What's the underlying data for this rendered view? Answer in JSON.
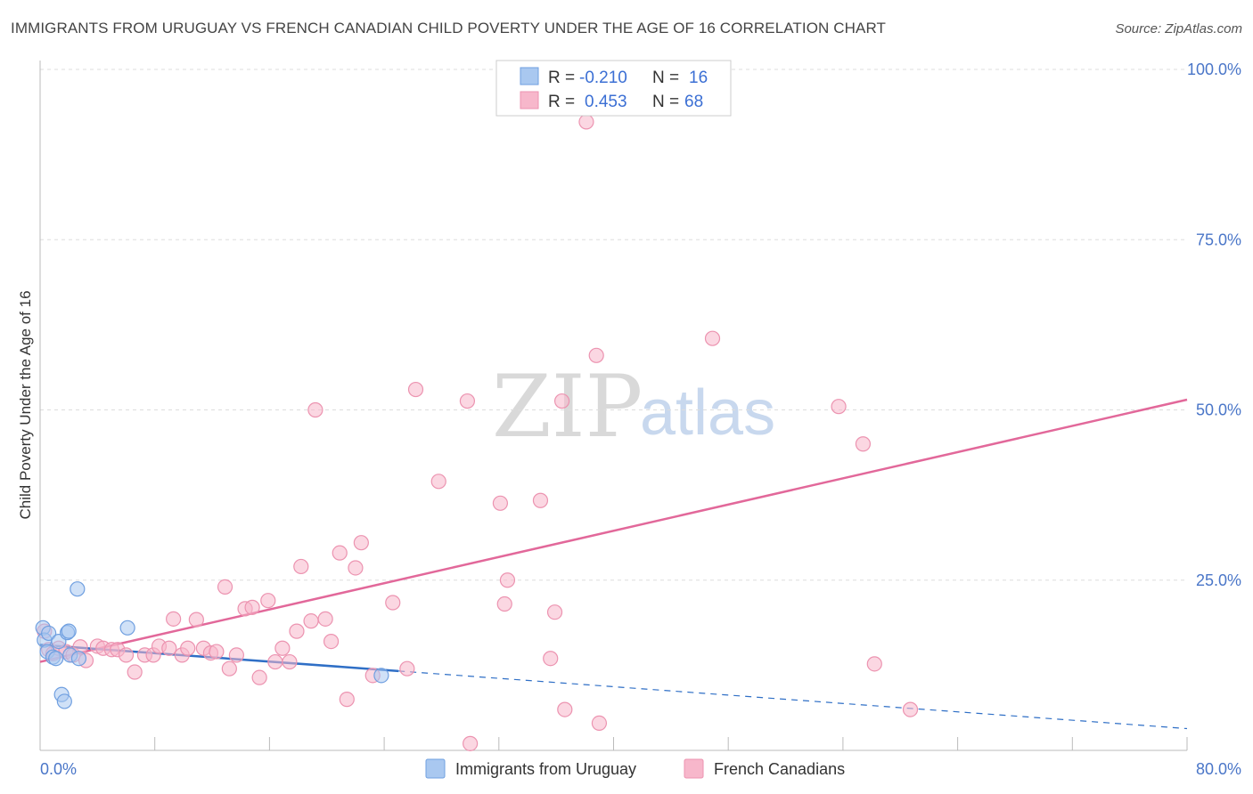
{
  "title": "IMMIGRANTS FROM URUGUAY VS FRENCH CANADIAN CHILD POVERTY UNDER THE AGE OF 16 CORRELATION CHART",
  "source": "Source: ZipAtlas.com",
  "watermark": {
    "zip": "ZIP",
    "atlas": "atlas"
  },
  "colors": {
    "blue_fill": "#a9c8f0",
    "blue_stroke": "#6f9fe0",
    "blue_line": "#2f6fc6",
    "pink_fill": "#f7b7cb",
    "pink_stroke": "#ec93b0",
    "pink_line": "#e2689a",
    "grid": "#dddddd",
    "axis_text": "#4a76c8"
  },
  "legend": {
    "r_label": "R =",
    "n_label": "N =",
    "items": [
      {
        "r": "-0.210",
        "n": "16",
        "series": "uruguay"
      },
      {
        "r": "0.453",
        "n": "68",
        "series": "french"
      }
    ]
  },
  "bottom_legend": [
    "Immigrants from Uruguay",
    "French Canadians"
  ],
  "chart_data": {
    "type": "scatter",
    "title": "IMMIGRANTS FROM URUGUAY VS FRENCH CANADIAN CHILD POVERTY UNDER THE AGE OF 16 CORRELATION CHART",
    "xlabel": "",
    "ylabel": "Child Poverty Under the Age of 16",
    "xlim": [
      0,
      80
    ],
    "ylim": [
      0,
      100
    ],
    "x_tick_labels": [
      {
        "value": 0,
        "label": "0.0%"
      },
      {
        "value": 80,
        "label": "80.0%"
      }
    ],
    "y_tick_labels": [
      {
        "value": 25,
        "label": "25.0%"
      },
      {
        "value": 50,
        "label": "50.0%"
      },
      {
        "value": 75,
        "label": "75.0%"
      },
      {
        "value": 100,
        "label": "100.0%"
      }
    ],
    "series": [
      {
        "name": "Immigrants from Uruguay",
        "color": "blue",
        "points": [
          [
            0.2,
            18.0
          ],
          [
            0.3,
            16.2
          ],
          [
            0.5,
            14.5
          ],
          [
            0.6,
            17.2
          ],
          [
            0.9,
            13.7
          ],
          [
            1.1,
            13.5
          ],
          [
            1.3,
            16.0
          ],
          [
            1.5,
            8.2
          ],
          [
            1.7,
            7.2
          ],
          [
            1.9,
            17.3
          ],
          [
            2.0,
            17.5
          ],
          [
            2.1,
            14.0
          ],
          [
            2.7,
            13.5
          ],
          [
            2.6,
            23.7
          ],
          [
            6.1,
            18.0
          ],
          [
            23.8,
            11.0
          ]
        ],
        "trend": {
          "x": [
            0,
            80
          ],
          "y": [
            15.5,
            3.2
          ],
          "solid_until_x": 25
        }
      },
      {
        "name": "French Canadians",
        "color": "pink",
        "points": [
          [
            0.3,
            17.5
          ],
          [
            0.6,
            14.8
          ],
          [
            0.9,
            14.2
          ],
          [
            1.3,
            15.0
          ],
          [
            1.8,
            14.5
          ],
          [
            2.3,
            14.0
          ],
          [
            2.8,
            15.2
          ],
          [
            3.2,
            13.2
          ],
          [
            4.0,
            15.3
          ],
          [
            4.4,
            15.0
          ],
          [
            5.0,
            14.8
          ],
          [
            5.4,
            14.8
          ],
          [
            6.0,
            14.0
          ],
          [
            6.6,
            11.5
          ],
          [
            7.3,
            14.0
          ],
          [
            7.9,
            14.0
          ],
          [
            8.3,
            15.3
          ],
          [
            9.0,
            15.0
          ],
          [
            9.3,
            19.3
          ],
          [
            9.9,
            14.0
          ],
          [
            10.3,
            15.0
          ],
          [
            10.9,
            19.2
          ],
          [
            11.4,
            15.0
          ],
          [
            11.9,
            14.3
          ],
          [
            12.3,
            14.5
          ],
          [
            12.9,
            24.0
          ],
          [
            13.2,
            12.0
          ],
          [
            13.7,
            14.0
          ],
          [
            14.3,
            20.8
          ],
          [
            14.8,
            21.0
          ],
          [
            15.3,
            10.7
          ],
          [
            15.9,
            22.0
          ],
          [
            16.4,
            13.0
          ],
          [
            16.9,
            15.0
          ],
          [
            17.4,
            13.0
          ],
          [
            17.9,
            17.5
          ],
          [
            18.2,
            27.0
          ],
          [
            18.9,
            19.0
          ],
          [
            19.2,
            50.0
          ],
          [
            19.9,
            19.3
          ],
          [
            20.3,
            16.0
          ],
          [
            20.9,
            29.0
          ],
          [
            21.4,
            7.5
          ],
          [
            22.0,
            26.8
          ],
          [
            22.4,
            30.5
          ],
          [
            23.2,
            11.0
          ],
          [
            24.6,
            21.7
          ],
          [
            25.6,
            12.0
          ],
          [
            26.2,
            53.0
          ],
          [
            27.8,
            39.5
          ],
          [
            29.8,
            51.3
          ],
          [
            32.1,
            36.3
          ],
          [
            32.4,
            21.5
          ],
          [
            32.6,
            25.0
          ],
          [
            34.9,
            36.7
          ],
          [
            35.6,
            13.5
          ],
          [
            35.9,
            20.3
          ],
          [
            36.4,
            51.3
          ],
          [
            36.6,
            6.0
          ],
          [
            38.1,
            92.3
          ],
          [
            38.8,
            58.0
          ],
          [
            39.0,
            4.0
          ],
          [
            46.9,
            60.5
          ],
          [
            55.7,
            50.5
          ],
          [
            57.4,
            45.0
          ],
          [
            58.2,
            12.7
          ],
          [
            60.7,
            6.0
          ],
          [
            30.0,
            1.0
          ]
        ],
        "trend": {
          "x": [
            0,
            80
          ],
          "y": [
            13.0,
            51.5
          ]
        }
      }
    ]
  }
}
